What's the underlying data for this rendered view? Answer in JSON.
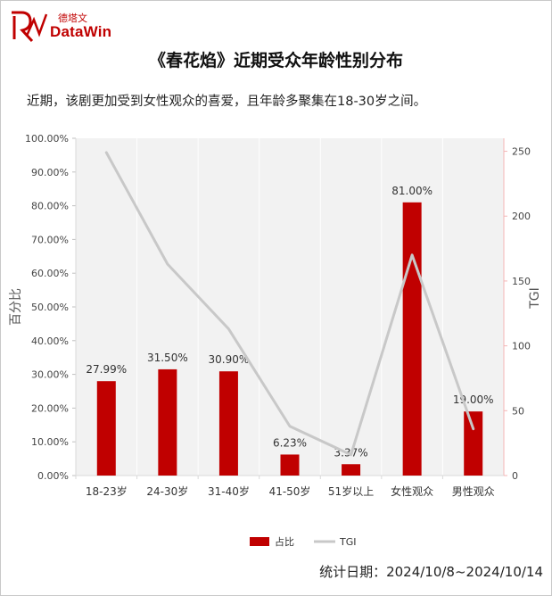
{
  "logo": {
    "cn": "德塔文",
    "en": "DataWin"
  },
  "title": "《春花焰》近期受众年龄性别分布",
  "subtitle": "近期，该剧更加受到女性观众的喜爱，且年龄多聚集在18-30岁之间。",
  "footer": "统计日期：2024/10/8~2024/10/14",
  "colors": {
    "bar": "#c00000",
    "line": "#c8c8c8",
    "plot_bg": "#f2f2f2"
  },
  "chart_data": {
    "type": "bar",
    "categories": [
      "18-23岁",
      "24-30岁",
      "31-40岁",
      "41-50岁",
      "51岁以上",
      "女性观众",
      "男性观众"
    ],
    "series": [
      {
        "name": "占比",
        "type": "bar",
        "axis": "left",
        "values": [
          27.99,
          31.5,
          30.9,
          6.23,
          3.37,
          81.0,
          19.0
        ],
        "labels": [
          "27.99%",
          "31.50%",
          "30.90%",
          "6.23%",
          "3.37%",
          "81.00%",
          "19.00%"
        ]
      },
      {
        "name": "TGI",
        "type": "line",
        "axis": "right",
        "values": [
          249,
          163,
          113,
          38,
          16,
          170,
          36
        ]
      }
    ],
    "ylabel": "百分比",
    "y2label": "TGI",
    "ylim": [
      0,
      100
    ],
    "y2lim": [
      0,
      260
    ],
    "yticks": [
      "0.00%",
      "10.00%",
      "20.00%",
      "30.00%",
      "40.00%",
      "50.00%",
      "60.00%",
      "70.00%",
      "80.00%",
      "90.00%",
      "100.00%"
    ],
    "y2ticks": [
      "0",
      "50",
      "100",
      "150",
      "200",
      "250"
    ],
    "legend_position": "bottom",
    "grid": false
  }
}
